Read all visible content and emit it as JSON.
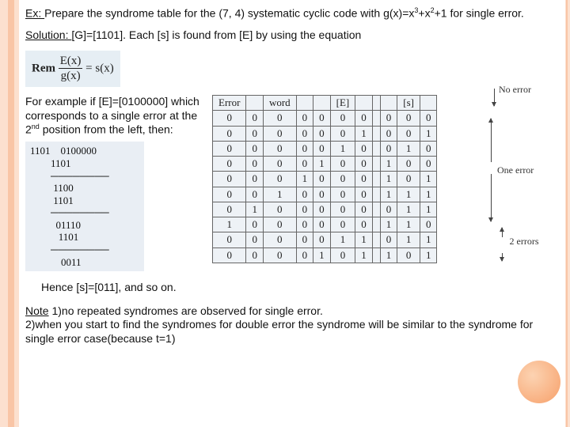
{
  "strings": {
    "ex_label": "Ex: ",
    "ex_text_a": "Prepare the syndrome table for the (7, 4) systematic cyclic code with g(x)=x",
    "ex_sup1": "3",
    "ex_text_b": "+x",
    "ex_sup2": "2",
    "ex_text_c": "+1 for single error.",
    "sol_label": "Solution: ",
    "sol_text": " [G]=[1101]. Each [s] is found from [E] by using the equation",
    "eq_rem": "Rem",
    "eq_num": "E(x)",
    "eq_den": "g(x)",
    "eq_eqpart": " = s(x)",
    "example_a": "For example if [E]=[0100000] which corresponds to  a single error at the 2",
    "example_sup": "nd",
    "example_b": " position from the left, then:",
    "hence": "Hence [s]=[011], and so on.",
    "note_label": "Note",
    "note1": " 1)no repeated syndromes are observed for single error.",
    "note2": "2)when you start to find the syndromes for double error the syndrome will be similar to the syndrome for single error case(because t=1)",
    "annot_noerror": "No error",
    "annot_oneerror": "One error",
    "annot_twoerrors": "2 errors"
  },
  "longdiv": [
    "1101    0100000",
    "        1101",
    "        ────────",
    "         1100",
    "         1101",
    "        ────────",
    "          01110",
    "           1101",
    "        ────────",
    "            0011"
  ],
  "table": {
    "headers_error": [
      "Error",
      "",
      "word",
      "",
      "",
      "[E]",
      ""
    ],
    "headers_s": [
      "",
      "[s]",
      ""
    ],
    "rows": [
      {
        "e": [
          0,
          0,
          0,
          0,
          0,
          0,
          0
        ],
        "s": [
          0,
          0,
          0
        ]
      },
      {
        "e": [
          0,
          0,
          0,
          0,
          0,
          0,
          1
        ],
        "s": [
          0,
          0,
          1
        ]
      },
      {
        "e": [
          0,
          0,
          0,
          0,
          0,
          1,
          0
        ],
        "s": [
          0,
          1,
          0
        ]
      },
      {
        "e": [
          0,
          0,
          0,
          0,
          1,
          0,
          0
        ],
        "s": [
          1,
          0,
          0
        ]
      },
      {
        "e": [
          0,
          0,
          0,
          1,
          0,
          0,
          0
        ],
        "s": [
          1,
          0,
          1
        ]
      },
      {
        "e": [
          0,
          0,
          1,
          0,
          0,
          0,
          0
        ],
        "s": [
          1,
          1,
          1
        ]
      },
      {
        "e": [
          0,
          1,
          0,
          0,
          0,
          0,
          0
        ],
        "s": [
          0,
          1,
          1
        ]
      },
      {
        "e": [
          1,
          0,
          0,
          0,
          0,
          0,
          0
        ],
        "s": [
          1,
          1,
          0
        ]
      },
      {
        "e": [
          0,
          0,
          0,
          0,
          0,
          1,
          1
        ],
        "s": [
          0,
          1,
          1
        ]
      },
      {
        "e": [
          0,
          0,
          0,
          0,
          1,
          0,
          1
        ],
        "s": [
          1,
          0,
          1
        ]
      }
    ]
  },
  "styles": {
    "table_bg": "#eef2f6",
    "table_border": "#666666",
    "eq_bg": "#e6eef4"
  }
}
